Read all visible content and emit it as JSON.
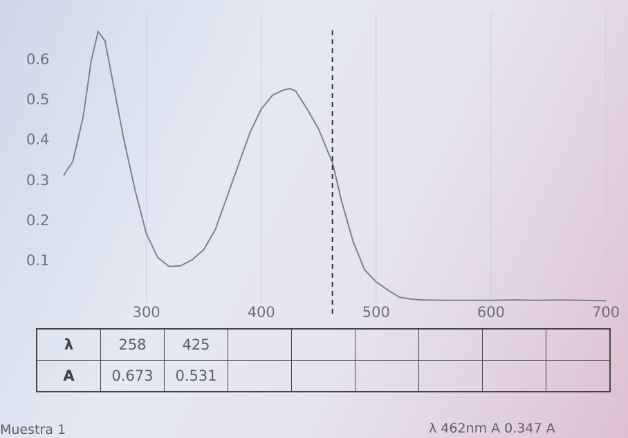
{
  "chart_data": {
    "type": "line",
    "xlim": [
      228,
      700
    ],
    "ylim": [
      0,
      0.7
    ],
    "xticks": [
      "300",
      "400",
      "500",
      "600",
      "700"
    ],
    "yticks": [
      "0.6",
      "0.5",
      "0.4",
      "0.3",
      "0.2",
      "0.1"
    ],
    "cursor_x": 462,
    "series": [
      {
        "x": [
          228,
          236,
          245,
          252,
          258,
          264,
          270,
          280,
          290,
          300,
          310,
          320,
          330,
          340,
          350,
          360,
          370,
          380,
          390,
          400,
          410,
          420,
          425,
          430,
          440,
          450,
          460,
          462,
          470,
          480,
          490,
          500,
          510,
          520,
          530,
          540,
          560,
          580,
          600,
          620,
          640,
          660,
          680,
          700
        ],
        "y": [
          0.315,
          0.35,
          0.46,
          0.6,
          0.673,
          0.65,
          0.56,
          0.41,
          0.28,
          0.17,
          0.11,
          0.088,
          0.09,
          0.105,
          0.13,
          0.18,
          0.26,
          0.34,
          0.42,
          0.48,
          0.515,
          0.528,
          0.531,
          0.525,
          0.48,
          0.43,
          0.36,
          0.347,
          0.25,
          0.15,
          0.08,
          0.05,
          0.03,
          0.012,
          0.007,
          0.005,
          0.004,
          0.004,
          0.004,
          0.005,
          0.004,
          0.005,
          0.004,
          0.003
        ]
      }
    ]
  },
  "peak_table": {
    "lambda_header": "λ",
    "a_header": "A",
    "lambda_values": [
      "258",
      "425",
      "",
      "",
      "",
      "",
      "",
      ""
    ],
    "a_values": [
      "0.673",
      "0.531",
      "",
      "",
      "",
      "",
      "",
      ""
    ]
  },
  "footer": {
    "sample": "Muestra 1",
    "cursor_readout": "λ 462nm A 0.347 A"
  },
  "colors": {
    "curve": "#7c8196",
    "cursor": "#303236",
    "grid": "#c9cde2"
  }
}
